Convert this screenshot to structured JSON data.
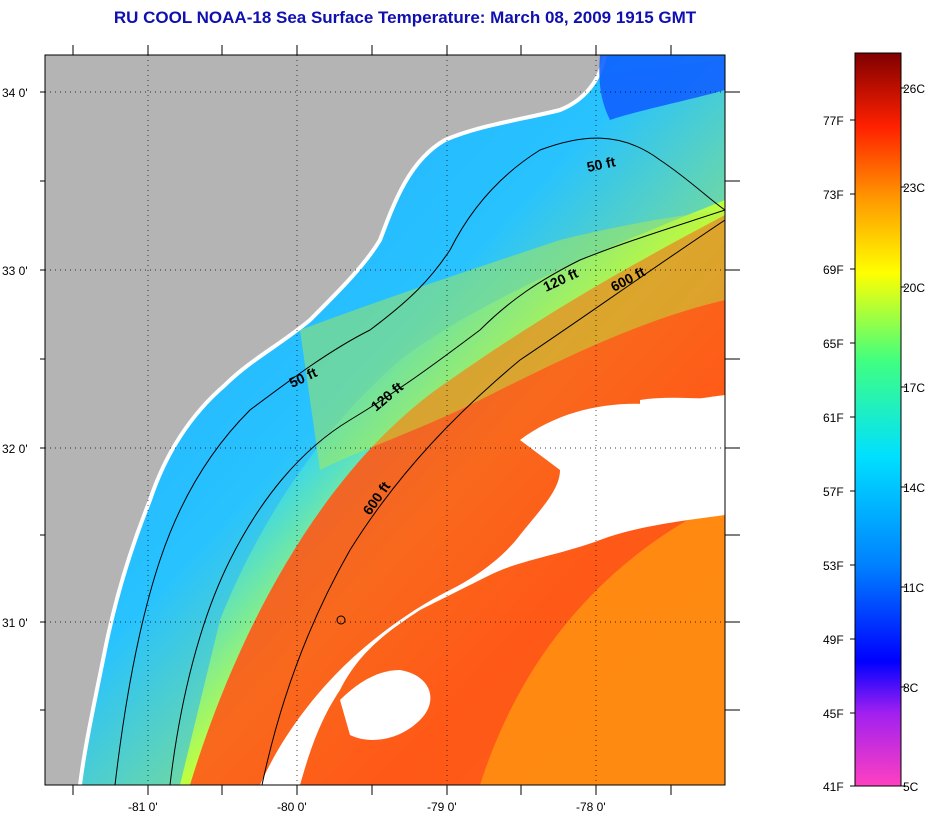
{
  "title": "RU COOL  NOAA-18  Sea Surface Temperature:  March 08, 2009 1915 GMT",
  "map": {
    "lat_labels": [
      "34 0'",
      "33 0'",
      "32 0'",
      "31 0'"
    ],
    "lon_labels": [
      "-81 0'",
      "-80 0'",
      "-79 0'",
      "-78 0'"
    ],
    "contour_labels": [
      {
        "text": "50 ft",
        "isobath": "50 ft"
      },
      {
        "text": "120 ft",
        "isobath": "120 ft"
      },
      {
        "text": "600 ft",
        "isobath": "600 ft"
      },
      {
        "text": "50 ft",
        "isobath": "50 ft"
      },
      {
        "text": "120 ft",
        "isobath": "120 ft"
      },
      {
        "text": "600 ft",
        "isobath": "600 ft"
      }
    ],
    "colors": {
      "land": "#b4b4b4",
      "cloud": "#ffffff",
      "contour": "#000000"
    }
  },
  "colorbar": {
    "fahrenheit_labels": [
      "77F",
      "73F",
      "69F",
      "65F",
      "61F",
      "57F",
      "53F",
      "49F",
      "45F",
      "41F"
    ],
    "celsius_labels": [
      "26C",
      "23C",
      "20C",
      "17C",
      "14C",
      "11C",
      "8C",
      "5C"
    ],
    "gradient_stops": [
      "#ff40c0",
      "#a020f0",
      "#0000ff",
      "#0080ff",
      "#00e0ff",
      "#40ff80",
      "#ffff00",
      "#ff8000",
      "#ff2000",
      "#800000"
    ]
  }
}
